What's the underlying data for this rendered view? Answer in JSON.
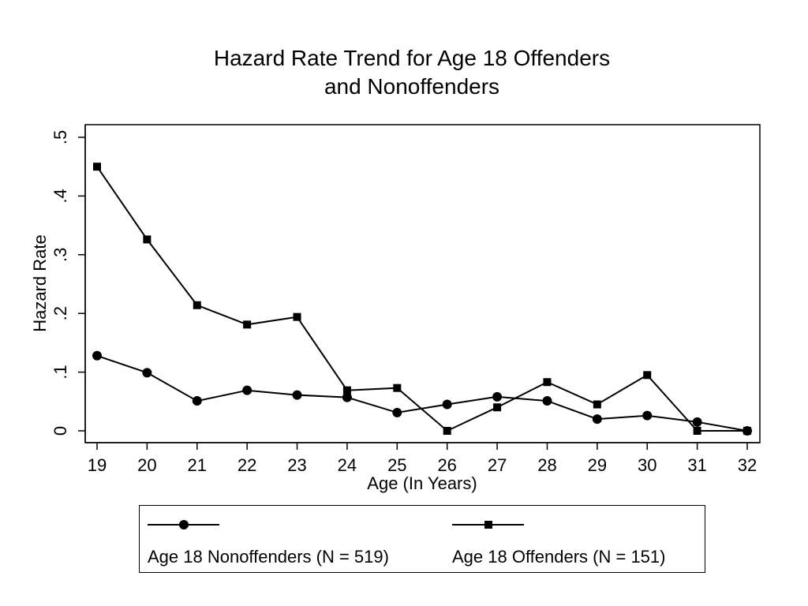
{
  "chart_data": {
    "type": "line",
    "title": [
      "Hazard Rate Trend for Age 18 Offenders",
      "and Nonoffenders"
    ],
    "xlabel": "Age (In Years)",
    "ylabel": "Hazard Rate",
    "x": [
      19,
      20,
      21,
      22,
      23,
      24,
      25,
      26,
      27,
      28,
      29,
      30,
      31,
      32
    ],
    "x_tick_labels": [
      "19",
      "20",
      "21",
      "22",
      "23",
      "24",
      "25",
      "26",
      "27",
      "28",
      "29",
      "30",
      "31",
      "32"
    ],
    "y_ticks": [
      0,
      0.1,
      0.2,
      0.3,
      0.4,
      0.5
    ],
    "y_tick_labels": [
      "0",
      ".1",
      ".2",
      ".3",
      ".4",
      ".5"
    ],
    "xlim": [
      19,
      32
    ],
    "ylim": [
      0,
      0.5
    ],
    "grid": false,
    "legend_position": "bottom",
    "series": [
      {
        "name": "Age 18 Nonoffenders (N = 519)",
        "marker": "circle",
        "color": "#000000",
        "values": [
          0.128,
          0.099,
          0.051,
          0.069,
          0.061,
          0.057,
          0.031,
          0.045,
          0.058,
          0.051,
          0.02,
          0.026,
          0.015,
          0.0
        ]
      },
      {
        "name": "Age 18 Offenders (N = 151)",
        "marker": "square",
        "color": "#000000",
        "values": [
          0.45,
          0.326,
          0.214,
          0.181,
          0.194,
          0.069,
          0.073,
          0.0,
          0.04,
          0.083,
          0.045,
          0.095,
          0.0,
          0.0
        ]
      }
    ]
  }
}
